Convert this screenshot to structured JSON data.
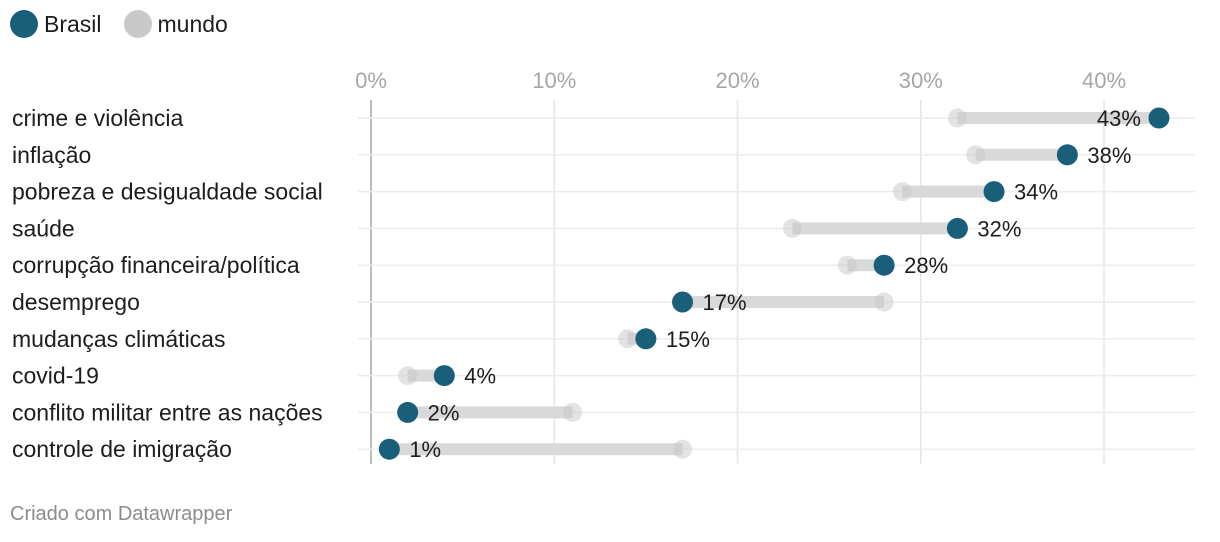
{
  "legend": {
    "items": [
      {
        "label": "Brasil",
        "color": "#1a5f7a"
      },
      {
        "label": "mundo",
        "color": "#c8c8c8"
      }
    ]
  },
  "chart_data": {
    "type": "dot-range",
    "title": "",
    "xlim": [
      0,
      45
    ],
    "x_ticks": [
      0,
      10,
      20,
      30,
      40
    ],
    "x_tick_labels": [
      "0%",
      "10%",
      "20%",
      "30%",
      "40%"
    ],
    "grid": true,
    "legend_position": "top-left",
    "categories": [
      "crime e violência",
      "inflação",
      "pobreza e desigualdade social",
      "saúde",
      "corrupção financeira/política",
      "desemprego",
      "mudanças climáticas",
      "covid-19",
      "conflito militar entre as nações",
      "controle de imigração"
    ],
    "series": [
      {
        "name": "Brasil",
        "values": [
          43,
          38,
          34,
          32,
          28,
          17,
          15,
          4,
          2,
          1
        ],
        "labels": [
          "43%",
          "38%",
          "34%",
          "32%",
          "28%",
          "17%",
          "15%",
          "4%",
          "2%",
          "1%"
        ]
      },
      {
        "name": "mundo",
        "values": [
          32,
          33,
          29,
          23,
          26,
          28,
          14,
          2,
          11,
          17
        ]
      }
    ]
  },
  "footer": {
    "text": "Criado com Datawrapper"
  }
}
